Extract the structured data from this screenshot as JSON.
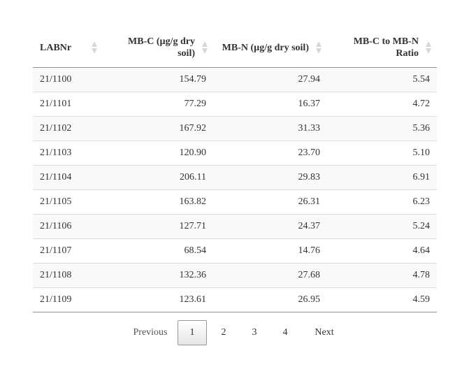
{
  "table": {
    "columns": [
      {
        "label": "LABNr",
        "align": "left"
      },
      {
        "label": "MB-C (µg/g dry soil)",
        "align": "right"
      },
      {
        "label": "MB-N (µg/g dry soil)",
        "align": "right"
      },
      {
        "label": "MB-C to MB-N Ratio",
        "align": "right"
      }
    ],
    "rows": [
      [
        "21/1100",
        "154.79",
        "27.94",
        "5.54"
      ],
      [
        "21/1101",
        "77.29",
        "16.37",
        "4.72"
      ],
      [
        "21/1102",
        "167.92",
        "31.33",
        "5.36"
      ],
      [
        "21/1103",
        "120.90",
        "23.70",
        "5.10"
      ],
      [
        "21/1104",
        "206.11",
        "29.83",
        "6.91"
      ],
      [
        "21/1105",
        "163.82",
        "26.31",
        "6.23"
      ],
      [
        "21/1106",
        "127.71",
        "24.37",
        "5.24"
      ],
      [
        "21/1107",
        "68.54",
        "14.76",
        "4.64"
      ],
      [
        "21/1108",
        "132.36",
        "27.68",
        "4.78"
      ],
      [
        "21/1109",
        "123.61",
        "26.95",
        "4.59"
      ]
    ]
  },
  "pagination": {
    "previous_label": "Previous",
    "pages": [
      "1",
      "2",
      "3",
      "4"
    ],
    "current_page": "1",
    "next_label": "Next"
  },
  "colors": {
    "text": "#333333",
    "stripe": "#f9f9f9",
    "row_border": "#dddddd",
    "header_border": "#8f8f8f",
    "sort_icon": "#d8d8d8"
  },
  "icons": {
    "sort": "sort-both-icon"
  }
}
